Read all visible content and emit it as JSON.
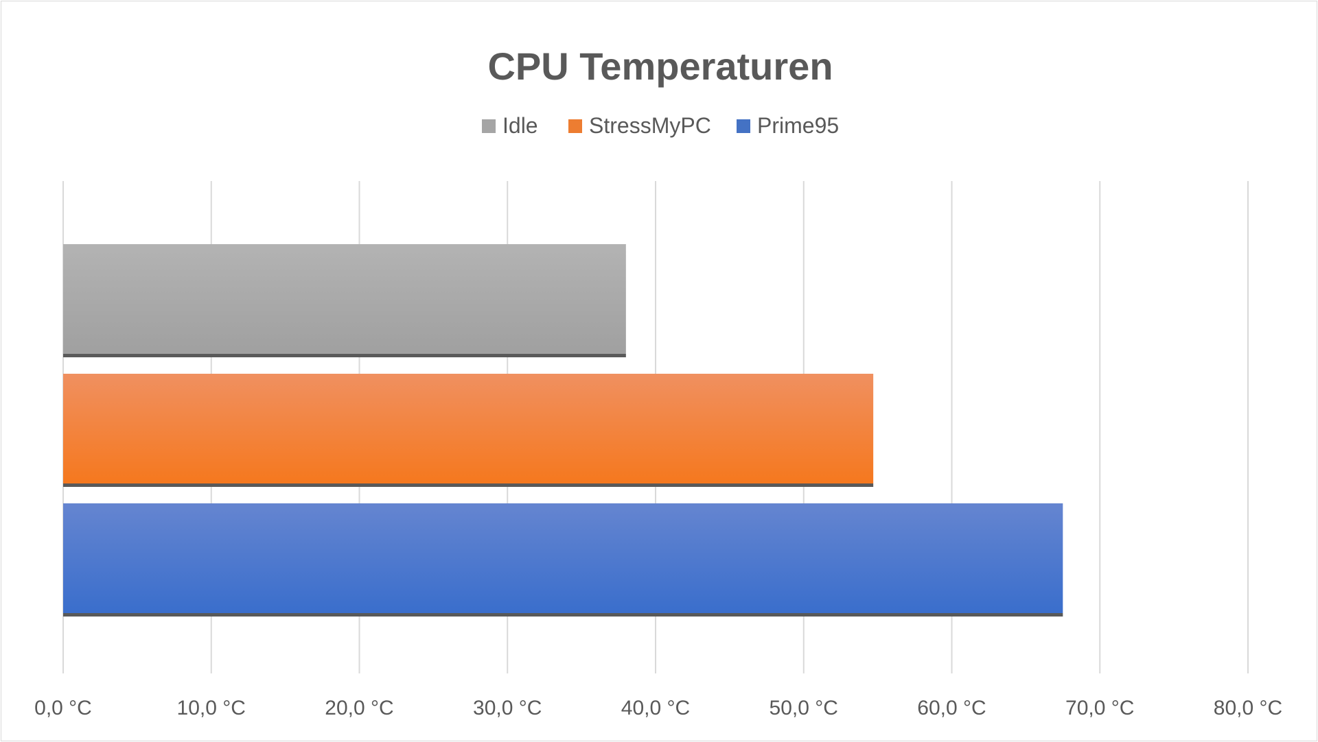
{
  "chart_data": {
    "type": "bar",
    "orientation": "horizontal",
    "title": "CPU Temperaturen",
    "xlabel": "",
    "ylabel": "",
    "xlim": [
      0,
      80
    ],
    "x_ticks": [
      "0,0 °C",
      "10,0 °C",
      "20,0 °C",
      "30,0 °C",
      "40,0 °C",
      "50,0 °C",
      "60,0 °C",
      "70,0 °C",
      "80,0 °C"
    ],
    "grid": true,
    "legend_position": "top",
    "series": [
      {
        "name": "Idle",
        "value": 38.0,
        "color": "#a5a5a5",
        "color_light": "#b3b3b3",
        "color_dark": "#a0a0a0"
      },
      {
        "name": "StressMyPC",
        "value": 54.7,
        "color": "#ed7d31",
        "color_light": "#f09060",
        "color_dark": "#f5781e"
      },
      {
        "name": "Prime95",
        "value": 67.5,
        "color": "#4472c4",
        "color_light": "#6585d0",
        "color_dark": "#3a6ecc"
      }
    ]
  }
}
